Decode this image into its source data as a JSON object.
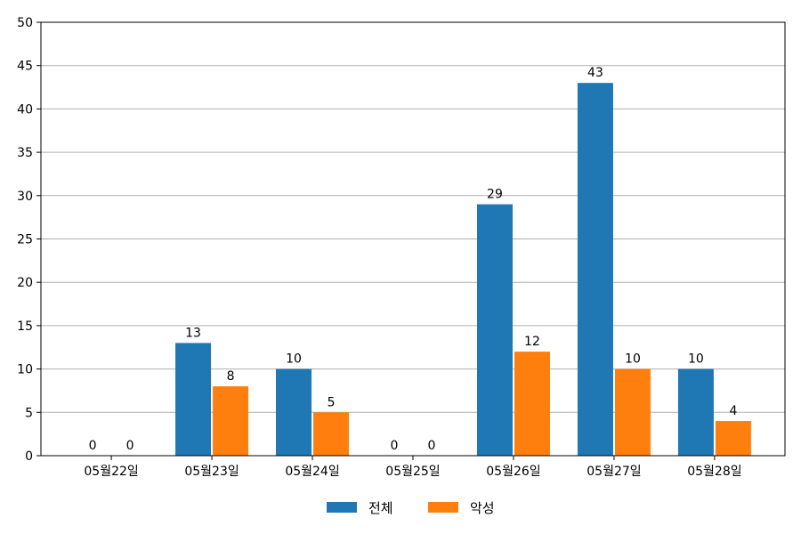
{
  "chart_data": {
    "type": "bar",
    "categories": [
      "05월22일",
      "05월23일",
      "05월24일",
      "05월25일",
      "05월26일",
      "05월27일",
      "05월28일"
    ],
    "series": [
      {
        "name": "전체",
        "color": "#1f77b4",
        "values": [
          0,
          13,
          10,
          0,
          29,
          43,
          10
        ]
      },
      {
        "name": "악성",
        "color": "#ff7f0e",
        "values": [
          0,
          8,
          5,
          0,
          12,
          10,
          4
        ]
      }
    ],
    "title": "",
    "xlabel": "",
    "ylabel": "",
    "ylim": [
      0,
      50
    ],
    "yticks": [
      0,
      5,
      10,
      15,
      20,
      25,
      30,
      35,
      40,
      45,
      50
    ],
    "grid": "horizontal",
    "legend_position": "bottom-center",
    "data_labels": true
  }
}
